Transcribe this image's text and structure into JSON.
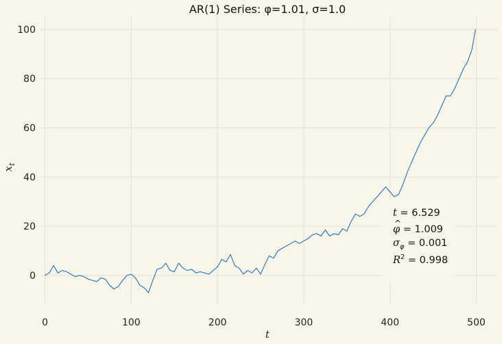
{
  "chart_data": {
    "type": "line",
    "title": "AR(1) Series: φ=1.01, σ=1.0",
    "xlabel": "t",
    "ylabel": "x_t",
    "xlim": [
      -6,
      525
    ],
    "ylim": [
      -12,
      105
    ],
    "xticks": [
      0,
      100,
      200,
      300,
      400,
      500
    ],
    "yticks": [
      0,
      20,
      40,
      60,
      80,
      100
    ],
    "grid": true,
    "line_color": "#1f6fc6",
    "background": "#f8f5e9",
    "series": [
      {
        "x": [
          0,
          5,
          10,
          15,
          20,
          25,
          30,
          35,
          40,
          45,
          50,
          55,
          60,
          65,
          70,
          75,
          80,
          85,
          90,
          95,
          100,
          105,
          110,
          115,
          120,
          125,
          130,
          135,
          140,
          145,
          150,
          155,
          160,
          165,
          170,
          175,
          180,
          185,
          190,
          195,
          200,
          205,
          210,
          215,
          220,
          225,
          230,
          235,
          240,
          245,
          250,
          255,
          260,
          265,
          270,
          275,
          280,
          285,
          290,
          295,
          300,
          305,
          310,
          315,
          320,
          325,
          330,
          335,
          340,
          345,
          350,
          355,
          360,
          365,
          370,
          375,
          380,
          385,
          390,
          395,
          400,
          405,
          410,
          415,
          420,
          425,
          430,
          435,
          440,
          445,
          450,
          455,
          460,
          465,
          470,
          475,
          480,
          485,
          490,
          495,
          499
        ],
        "y": [
          0.0,
          1.0,
          4.0,
          1.0,
          2.0,
          1.5,
          0.5,
          -0.5,
          0.0,
          -0.5,
          -1.5,
          -2.0,
          -2.5,
          -1.0,
          -1.5,
          -4.0,
          -5.5,
          -4.5,
          -2.0,
          0.0,
          0.5,
          -1.0,
          -4.0,
          -5.0,
          -7.0,
          -2.0,
          2.5,
          3.0,
          5.0,
          2.0,
          1.5,
          5.0,
          3.0,
          2.0,
          2.5,
          1.0,
          1.5,
          1.0,
          0.5,
          2.0,
          3.5,
          6.5,
          5.5,
          8.5,
          4.0,
          3.0,
          0.5,
          2.0,
          1.0,
          3.0,
          0.5,
          4.5,
          8.0,
          7.0,
          10.0,
          11.0,
          12.0,
          13.0,
          14.0,
          13.0,
          14.0,
          15.0,
          16.5,
          17.0,
          16.0,
          18.5,
          16.0,
          17.0,
          16.5,
          19.0,
          18.0,
          22.0,
          25.0,
          24.0,
          25.0,
          28.0,
          30.0,
          32.0,
          34.0,
          36.0,
          34.0,
          32.0,
          33.0,
          37.0,
          42.0,
          46.0,
          50.0,
          54.0,
          57.0,
          60.0,
          62.0,
          65.0,
          69.0,
          73.0,
          73.0,
          76.0,
          80.0,
          84.0,
          87.0,
          92.0,
          100.0
        ]
      }
    ],
    "annotations": [
      {
        "kind": "t",
        "value": "6.529"
      },
      {
        "kind": "phi_hat",
        "value": "1.009"
      },
      {
        "kind": "sigma_phi_hat",
        "value": "0.001"
      },
      {
        "kind": "r_squared",
        "value": "0.998"
      }
    ]
  }
}
